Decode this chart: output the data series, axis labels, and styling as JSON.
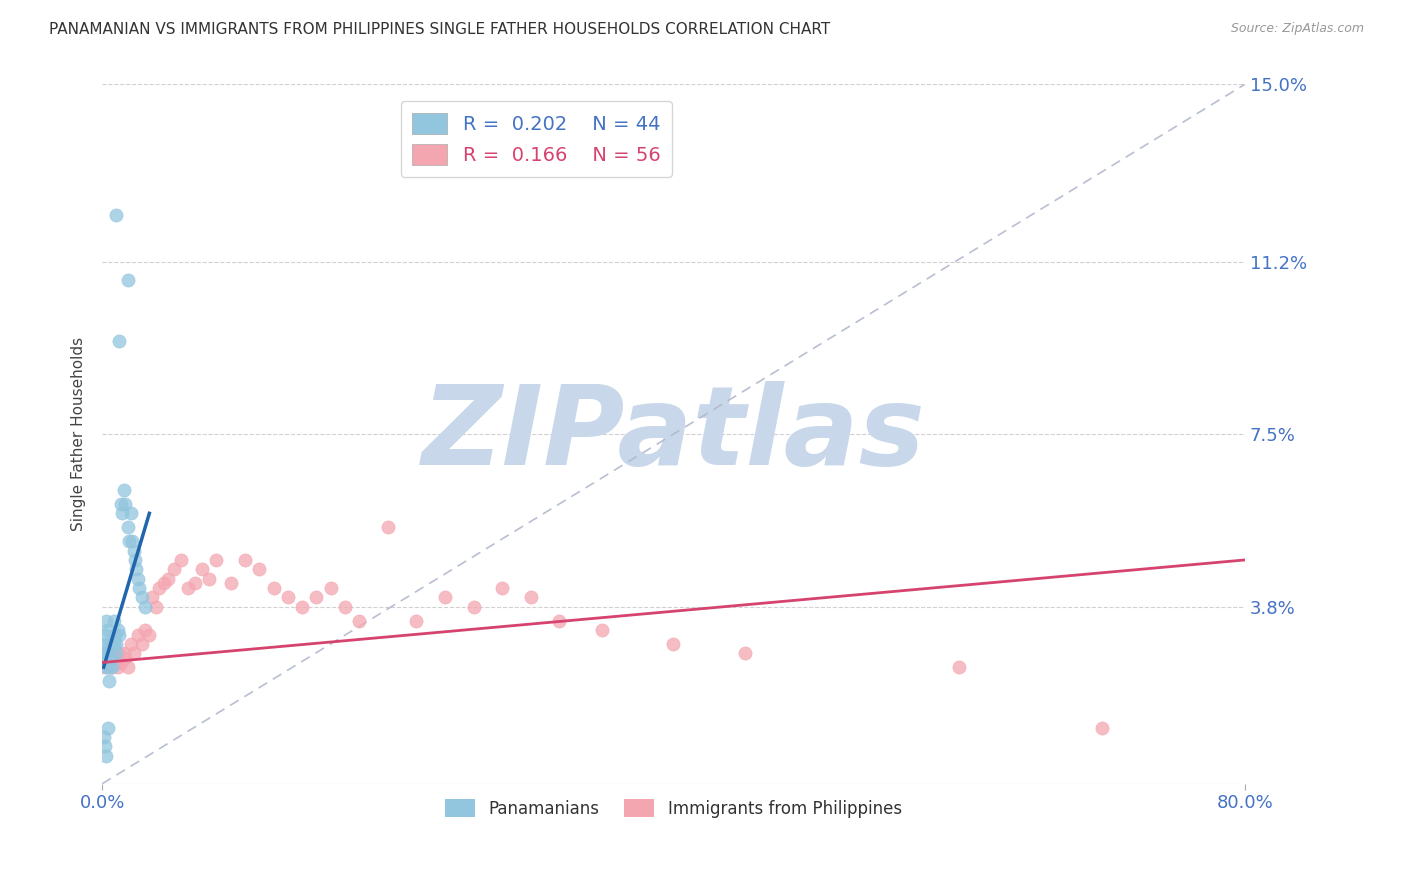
{
  "title": "PANAMANIAN VS IMMIGRANTS FROM PHILIPPINES SINGLE FATHER HOUSEHOLDS CORRELATION CHART",
  "source": "Source: ZipAtlas.com",
  "ylabel": "Single Father Households",
  "xlim": [
    0.0,
    0.8
  ],
  "ylim": [
    -0.005,
    0.155
  ],
  "plot_ylim": [
    0.0,
    0.15
  ],
  "yticks": [
    0.038,
    0.075,
    0.112,
    0.15
  ],
  "ytick_labels": [
    "3.8%",
    "7.5%",
    "11.2%",
    "15.0%"
  ],
  "xticks": [
    0.0,
    0.8
  ],
  "xtick_labels": [
    "0.0%",
    "80.0%"
  ],
  "blue_color": "#92c5de",
  "pink_color": "#f4a6b0",
  "blue_line_color": "#2166ac",
  "pink_line_color": "#d6436e",
  "ref_line_color": "#b0b8cc",
  "background_color": "#ffffff",
  "grid_color": "#cccccc",
  "axis_color": "#4472c4",
  "title_fontsize": 11,
  "source_fontsize": 9,
  "watermark": "ZIPatlas",
  "watermark_color": "#c8d8ea",
  "legend_r_blue": "0.202",
  "legend_n_blue": "44",
  "legend_r_pink": "0.166",
  "legend_n_pink": "56",
  "blue_scatter_x": [
    0.001,
    0.002,
    0.002,
    0.003,
    0.003,
    0.003,
    0.004,
    0.004,
    0.005,
    0.005,
    0.005,
    0.006,
    0.006,
    0.007,
    0.007,
    0.008,
    0.008,
    0.009,
    0.01,
    0.01,
    0.011,
    0.012,
    0.013,
    0.014,
    0.015,
    0.016,
    0.018,
    0.019,
    0.02,
    0.021,
    0.022,
    0.023,
    0.024,
    0.025,
    0.026,
    0.028,
    0.03,
    0.001,
    0.002,
    0.003,
    0.004,
    0.01,
    0.012,
    0.018
  ],
  "blue_scatter_y": [
    0.028,
    0.03,
    0.032,
    0.025,
    0.028,
    0.035,
    0.028,
    0.033,
    0.03,
    0.025,
    0.022,
    0.03,
    0.027,
    0.03,
    0.025,
    0.035,
    0.03,
    0.032,
    0.03,
    0.028,
    0.033,
    0.032,
    0.06,
    0.058,
    0.063,
    0.06,
    0.055,
    0.052,
    0.058,
    0.052,
    0.05,
    0.048,
    0.046,
    0.044,
    0.042,
    0.04,
    0.038,
    0.01,
    0.008,
    0.006,
    0.012,
    0.122,
    0.095,
    0.108
  ],
  "pink_scatter_x": [
    0.001,
    0.002,
    0.003,
    0.004,
    0.005,
    0.006,
    0.007,
    0.008,
    0.009,
    0.01,
    0.011,
    0.012,
    0.013,
    0.015,
    0.016,
    0.018,
    0.02,
    0.022,
    0.025,
    0.028,
    0.03,
    0.033,
    0.035,
    0.038,
    0.04,
    0.043,
    0.046,
    0.05,
    0.055,
    0.06,
    0.065,
    0.07,
    0.075,
    0.08,
    0.09,
    0.1,
    0.11,
    0.12,
    0.13,
    0.14,
    0.15,
    0.16,
    0.17,
    0.18,
    0.2,
    0.22,
    0.24,
    0.26,
    0.28,
    0.3,
    0.32,
    0.35,
    0.4,
    0.45,
    0.6,
    0.7
  ],
  "pink_scatter_y": [
    0.025,
    0.027,
    0.026,
    0.028,
    0.025,
    0.027,
    0.025,
    0.028,
    0.026,
    0.027,
    0.025,
    0.028,
    0.026,
    0.028,
    0.027,
    0.025,
    0.03,
    0.028,
    0.032,
    0.03,
    0.033,
    0.032,
    0.04,
    0.038,
    0.042,
    0.043,
    0.044,
    0.046,
    0.048,
    0.042,
    0.043,
    0.046,
    0.044,
    0.048,
    0.043,
    0.048,
    0.046,
    0.042,
    0.04,
    0.038,
    0.04,
    0.042,
    0.038,
    0.035,
    0.055,
    0.035,
    0.04,
    0.038,
    0.042,
    0.04,
    0.035,
    0.033,
    0.03,
    0.028,
    0.025,
    0.012
  ],
  "blue_line_x": [
    0.001,
    0.033
  ],
  "blue_line_y": [
    0.025,
    0.058
  ],
  "pink_line_x": [
    0.0,
    0.8
  ],
  "pink_line_y": [
    0.026,
    0.048
  ]
}
